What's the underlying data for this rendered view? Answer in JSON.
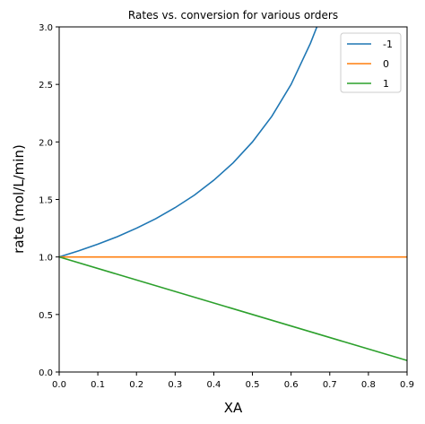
{
  "chart_data": {
    "type": "line",
    "title": "Rates vs. conversion for various orders",
    "xlabel": "XA",
    "ylabel": "rate (mol/L/min)",
    "xlim": [
      0.0,
      0.9
    ],
    "ylim": [
      0.0,
      3.0
    ],
    "xticks": [
      "0.0",
      "0.1",
      "0.2",
      "0.3",
      "0.4",
      "0.5",
      "0.6",
      "0.7",
      "0.8",
      "0.9"
    ],
    "yticks": [
      "0.0",
      "0.5",
      "1.0",
      "1.5",
      "2.0",
      "2.5",
      "3.0"
    ],
    "grid": false,
    "legend_position": "top-right",
    "series": [
      {
        "name": "-1",
        "color": "#1f77b4",
        "x": [
          0.0,
          0.05,
          0.1,
          0.15,
          0.2,
          0.25,
          0.3,
          0.35,
          0.4,
          0.45,
          0.5,
          0.55,
          0.6,
          0.65,
          0.6667
        ],
        "y": [
          1.0,
          1.053,
          1.111,
          1.176,
          1.25,
          1.333,
          1.429,
          1.538,
          1.667,
          1.818,
          2.0,
          2.222,
          2.5,
          2.857,
          3.0
        ]
      },
      {
        "name": "0",
        "color": "#ff7f0e",
        "x": [
          0.0,
          0.9
        ],
        "y": [
          1.0,
          1.0
        ]
      },
      {
        "name": "1",
        "color": "#2ca02c",
        "x": [
          0.0,
          0.9
        ],
        "y": [
          1.0,
          0.1
        ]
      }
    ]
  }
}
